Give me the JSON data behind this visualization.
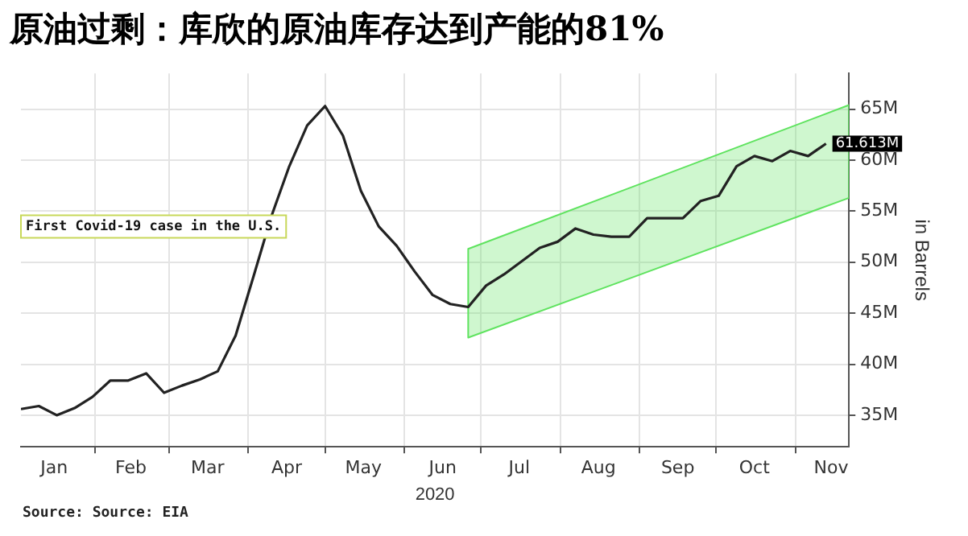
{
  "chart_data": {
    "type": "line",
    "title": "原油过剩：库欣的原油库存达到产能的81%",
    "xlabel": "2020",
    "ylabel": "in Barrels",
    "xlim": [
      "2020-01-03",
      "2020-11-22"
    ],
    "xticks": [
      {
        "value": "2020-01-16",
        "label": "Jan"
      },
      {
        "value": "2020-02-01",
        "label": null
      },
      {
        "value": "2020-02-15",
        "label": "Feb"
      },
      {
        "value": "2020-03-01",
        "label": null
      },
      {
        "value": "2020-03-16",
        "label": "Mar"
      },
      {
        "value": "2020-04-01",
        "label": null
      },
      {
        "value": "2020-04-16",
        "label": "Apr"
      },
      {
        "value": "2020-05-01",
        "label": null
      },
      {
        "value": "2020-05-16",
        "label": "May"
      },
      {
        "value": "2020-06-01",
        "label": null
      },
      {
        "value": "2020-06-16",
        "label": "Jun"
      },
      {
        "value": "2020-07-01",
        "label": null
      },
      {
        "value": "2020-07-16",
        "label": "Jul"
      },
      {
        "value": "2020-08-01",
        "label": null
      },
      {
        "value": "2020-08-16",
        "label": "Aug"
      },
      {
        "value": "2020-09-01",
        "label": null
      },
      {
        "value": "2020-09-16",
        "label": "Sep"
      },
      {
        "value": "2020-10-01",
        "label": null
      },
      {
        "value": "2020-10-16",
        "label": "Oct"
      },
      {
        "value": "2020-11-01",
        "label": null
      },
      {
        "value": "2020-11-15",
        "label": "Nov"
      }
    ],
    "ylim": [
      31.9,
      68.5
    ],
    "yticks": [
      {
        "value": 35,
        "label": "35M"
      },
      {
        "value": 40,
        "label": "40M"
      },
      {
        "value": 45,
        "label": "45M"
      },
      {
        "value": 50,
        "label": "50M"
      },
      {
        "value": 55,
        "label": "55M"
      },
      {
        "value": 60,
        "label": "60M"
      },
      {
        "value": 65,
        "label": "65M"
      }
    ],
    "grid": true,
    "legend": false,
    "marker": "none",
    "line_style": "solid",
    "x": [
      "2020-01-03",
      "2020-01-10",
      "2020-01-17",
      "2020-01-24",
      "2020-01-31",
      "2020-02-07",
      "2020-02-14",
      "2020-02-21",
      "2020-02-28",
      "2020-03-06",
      "2020-03-13",
      "2020-03-20",
      "2020-03-27",
      "2020-04-03",
      "2020-04-10",
      "2020-04-17",
      "2020-04-24",
      "2020-05-01",
      "2020-05-08",
      "2020-05-15",
      "2020-05-22",
      "2020-05-29",
      "2020-06-05",
      "2020-06-12",
      "2020-06-19",
      "2020-06-26",
      "2020-07-03",
      "2020-07-10",
      "2020-07-17",
      "2020-07-24",
      "2020-07-31",
      "2020-08-07",
      "2020-08-14",
      "2020-08-21",
      "2020-08-28",
      "2020-09-04",
      "2020-09-11",
      "2020-09-18",
      "2020-09-25",
      "2020-10-02",
      "2020-10-09",
      "2020-10-16",
      "2020-10-23",
      "2020-10-30",
      "2020-11-06",
      "2020-11-13"
    ],
    "series": [
      {
        "type": "area",
        "color": "#5fe35f",
        "x": [
          "2020-06-26",
          "2020-11-22"
        ],
        "values": [
          null,
          null
        ],
        "lower": [
          42.6,
          56.3
        ],
        "upper": [
          51.3,
          65.4
        ]
      },
      {
        "color": "#222222",
        "values": [
          35.6,
          35.9,
          35.0,
          35.7,
          36.8,
          38.4,
          38.4,
          39.1,
          37.2,
          37.9,
          38.5,
          39.3,
          42.8,
          48.6,
          54.5,
          59.4,
          63.4,
          65.3,
          62.4,
          57.0,
          53.5,
          51.6,
          49.1,
          46.8,
          45.9,
          45.6,
          47.7,
          48.8,
          50.1,
          51.4,
          52.0,
          53.3,
          52.7,
          52.5,
          52.5,
          54.3,
          54.3,
          54.3,
          56.0,
          56.5,
          59.4,
          60.4,
          59.9,
          60.9,
          60.4,
          61.613
        ],
        "value_labels": [
          null,
          null,
          null,
          null,
          null,
          null,
          null,
          null,
          null,
          null,
          null,
          null,
          null,
          null,
          null,
          null,
          null,
          null,
          null,
          null,
          null,
          null,
          null,
          null,
          null,
          null,
          null,
          null,
          null,
          null,
          null,
          null,
          null,
          null,
          null,
          null,
          null,
          null,
          null,
          null,
          null,
          null,
          null,
          null,
          null,
          "61.613M"
        ]
      }
    ],
    "annotations": [
      "First Covid-19 case in the U.S.",
      "Source: Source: EIA"
    ]
  }
}
